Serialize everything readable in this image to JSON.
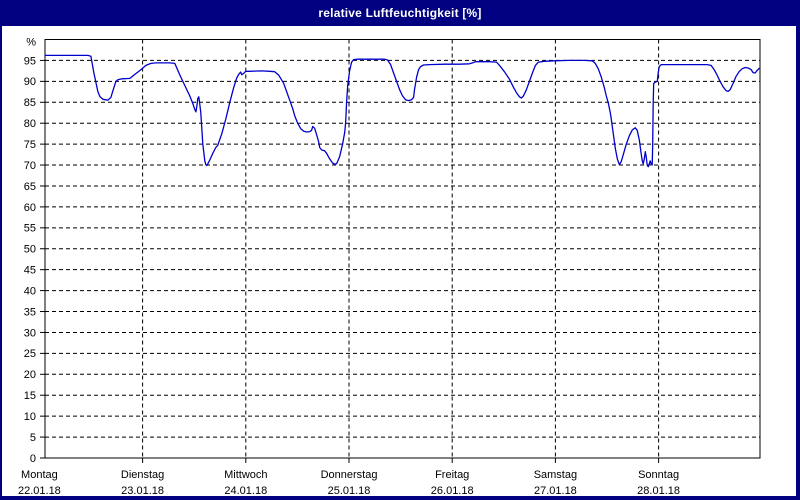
{
  "window": {
    "title": "relative Luftfeuchtigkeit [%]",
    "colors": {
      "title_bar": "#000080",
      "title_text": "#ffffff",
      "frame": "#000080",
      "plot_background": "#ffffff",
      "grid": "#000000",
      "axis_text": "#000000",
      "series_line": "#0000cc"
    }
  },
  "chart_data": {
    "type": "line",
    "title": "relative Luftfeuchtigkeit [%]",
    "grid": "dashed",
    "legend": "none",
    "y_axis": {
      "unit_top_label": "%",
      "min": 0,
      "max": 100,
      "tick_step": 5,
      "tick_labels": [
        "95",
        "90",
        "85",
        "80",
        "75",
        "70",
        "65",
        "60",
        "55",
        "50",
        "45",
        "40",
        "35",
        "30",
        "25",
        "20",
        "15",
        "10",
        "5",
        "0"
      ]
    },
    "x_axis": {
      "days": [
        {
          "name": "Montag",
          "date": "22.01.18"
        },
        {
          "name": "Dienstag",
          "date": "23.01.18"
        },
        {
          "name": "Mittwoch",
          "date": "24.01.18"
        },
        {
          "name": "Donnerstag",
          "date": "25.01.18"
        },
        {
          "name": "Freitag",
          "date": "26.01.18"
        },
        {
          "name": "Samstag",
          "date": "27.01.18"
        },
        {
          "name": "Sonntag",
          "date": "28.01.18"
        }
      ]
    },
    "series": [
      {
        "name": "relative Luftfeuchtigkeit",
        "unit": "%",
        "x_unit": "days since Montag 22.01.18 00:00",
        "points": [
          [
            0.054,
            96.2
          ],
          [
            0.47,
            96.2
          ],
          [
            0.499,
            96.0
          ],
          [
            0.528,
            92.0
          ],
          [
            0.567,
            87.5
          ],
          [
            0.587,
            86.3
          ],
          [
            0.616,
            85.7
          ],
          [
            0.664,
            85.5
          ],
          [
            0.693,
            86.2
          ],
          [
            0.722,
            88.5
          ],
          [
            0.741,
            90.0
          ],
          [
            0.761,
            90.4
          ],
          [
            0.8,
            90.6
          ],
          [
            0.877,
            90.7
          ],
          [
            0.916,
            91.5
          ],
          [
            0.974,
            92.6
          ],
          [
            1.032,
            93.8
          ],
          [
            1.08,
            94.3
          ],
          [
            1.128,
            94.4
          ],
          [
            1.264,
            94.4
          ],
          [
            1.312,
            94.3
          ],
          [
            1.361,
            91.5
          ],
          [
            1.409,
            89.0
          ],
          [
            1.457,
            86.5
          ],
          [
            1.486,
            84.7
          ],
          [
            1.506,
            83.3
          ],
          [
            1.516,
            82.7
          ],
          [
            1.525,
            84.0
          ],
          [
            1.535,
            85.9
          ],
          [
            1.545,
            86.3
          ],
          [
            1.554,
            84.5
          ],
          [
            1.564,
            82.5
          ],
          [
            1.583,
            75.0
          ],
          [
            1.603,
            71.0
          ],
          [
            1.612,
            70.1
          ],
          [
            1.622,
            69.9
          ],
          [
            1.632,
            70.3
          ],
          [
            1.651,
            71.2
          ],
          [
            1.68,
            72.8
          ],
          [
            1.709,
            74.2
          ],
          [
            1.728,
            74.7
          ],
          [
            1.767,
            77.5
          ],
          [
            1.806,
            81.0
          ],
          [
            1.845,
            85.0
          ],
          [
            1.883,
            88.5
          ],
          [
            1.912,
            90.8
          ],
          [
            1.932,
            91.7
          ],
          [
            1.951,
            92.2
          ],
          [
            1.961,
            91.6
          ],
          [
            1.98,
            91.9
          ],
          [
            1.999,
            92.4
          ],
          [
            2.038,
            92.4
          ],
          [
            2.154,
            92.5
          ],
          [
            2.232,
            92.4
          ],
          [
            2.28,
            92.3
          ],
          [
            2.319,
            91.5
          ],
          [
            2.348,
            90.3
          ],
          [
            2.367,
            89.5
          ],
          [
            2.396,
            87.5
          ],
          [
            2.425,
            85.5
          ],
          [
            2.454,
            83.5
          ],
          [
            2.474,
            81.8
          ],
          [
            2.503,
            80.0
          ],
          [
            2.532,
            78.7
          ],
          [
            2.561,
            78.1
          ],
          [
            2.59,
            77.9
          ],
          [
            2.619,
            78.0
          ],
          [
            2.638,
            78.3
          ],
          [
            2.648,
            79.2
          ],
          [
            2.667,
            78.8
          ],
          [
            2.687,
            77.2
          ],
          [
            2.706,
            75.5
          ],
          [
            2.716,
            74.2
          ],
          [
            2.735,
            73.6
          ],
          [
            2.764,
            73.4
          ],
          [
            2.783,
            72.8
          ],
          [
            2.812,
            71.5
          ],
          [
            2.841,
            70.5
          ],
          [
            2.861,
            70.2
          ],
          [
            2.88,
            70.3
          ],
          [
            2.909,
            72.0
          ],
          [
            2.938,
            75.0
          ],
          [
            2.958,
            77.8
          ],
          [
            2.967,
            80.0
          ],
          [
            2.977,
            85.0
          ],
          [
            2.987,
            89.0
          ],
          [
            3.006,
            92.5
          ],
          [
            3.025,
            94.6
          ],
          [
            3.045,
            95.2
          ],
          [
            3.083,
            95.3
          ],
          [
            3.2,
            95.3
          ],
          [
            3.345,
            95.3
          ],
          [
            3.374,
            95.1
          ],
          [
            3.403,
            94.0
          ],
          [
            3.432,
            92.0
          ],
          [
            3.461,
            90.0
          ],
          [
            3.49,
            88.0
          ],
          [
            3.519,
            86.5
          ],
          [
            3.548,
            85.6
          ],
          [
            3.577,
            85.4
          ],
          [
            3.606,
            85.6
          ],
          [
            3.626,
            86.2
          ],
          [
            3.635,
            88.0
          ],
          [
            3.655,
            91.0
          ],
          [
            3.674,
            92.8
          ],
          [
            3.693,
            93.5
          ],
          [
            3.722,
            93.9
          ],
          [
            3.78,
            94.0
          ],
          [
            3.926,
            94.1
          ],
          [
            4.071,
            94.1
          ],
          [
            4.168,
            94.2
          ],
          [
            4.197,
            94.4
          ],
          [
            4.226,
            94.7
          ],
          [
            4.361,
            94.7
          ],
          [
            4.429,
            94.6
          ],
          [
            4.458,
            93.8
          ],
          [
            4.506,
            92.3
          ],
          [
            4.555,
            90.5
          ],
          [
            4.593,
            88.6
          ],
          [
            4.622,
            87.3
          ],
          [
            4.651,
            86.3
          ],
          [
            4.671,
            86.0
          ],
          [
            4.69,
            86.5
          ],
          [
            4.719,
            88.0
          ],
          [
            4.748,
            90.0
          ],
          [
            4.777,
            92.0
          ],
          [
            4.806,
            93.8
          ],
          [
            4.835,
            94.6
          ],
          [
            4.893,
            94.8
          ],
          [
            4.99,
            94.9
          ],
          [
            5.135,
            95.0
          ],
          [
            5.28,
            95.0
          ],
          [
            5.358,
            94.9
          ],
          [
            5.387,
            94.3
          ],
          [
            5.416,
            93.0
          ],
          [
            5.445,
            91.0
          ],
          [
            5.474,
            88.5
          ],
          [
            5.493,
            86.5
          ],
          [
            5.513,
            84.8
          ],
          [
            5.532,
            82.5
          ],
          [
            5.542,
            80.9
          ],
          [
            5.561,
            77.5
          ],
          [
            5.58,
            74.0
          ],
          [
            5.6,
            71.5
          ],
          [
            5.619,
            70.1
          ],
          [
            5.638,
            70.8
          ],
          [
            5.658,
            72.5
          ],
          [
            5.687,
            75.0
          ],
          [
            5.716,
            77.0
          ],
          [
            5.745,
            78.4
          ],
          [
            5.774,
            78.9
          ],
          [
            5.793,
            78.3
          ],
          [
            5.813,
            76.0
          ],
          [
            5.832,
            72.5
          ],
          [
            5.842,
            71.0
          ],
          [
            5.851,
            70.3
          ],
          [
            5.861,
            71.5
          ],
          [
            5.871,
            73.2
          ],
          [
            5.88,
            72.0
          ],
          [
            5.89,
            70.0
          ],
          [
            5.9,
            69.6
          ],
          [
            5.909,
            70.2
          ],
          [
            5.919,
            71.0
          ],
          [
            5.929,
            70.2
          ],
          [
            5.938,
            70.0
          ],
          [
            5.943,
            75.0
          ],
          [
            5.948,
            85.0
          ],
          [
            5.953,
            89.5
          ],
          [
            5.967,
            89.8
          ],
          [
            5.987,
            90.0
          ],
          [
            5.996,
            92.0
          ],
          [
            6.006,
            93.5
          ],
          [
            6.025,
            94.0
          ],
          [
            6.103,
            94.0
          ],
          [
            6.248,
            94.0
          ],
          [
            6.393,
            94.0
          ],
          [
            6.47,
            94.0
          ],
          [
            6.509,
            93.8
          ],
          [
            6.538,
            92.8
          ],
          [
            6.567,
            91.5
          ],
          [
            6.596,
            90.0
          ],
          [
            6.625,
            88.7
          ],
          [
            6.654,
            87.8
          ],
          [
            6.674,
            87.6
          ],
          [
            6.693,
            88.0
          ],
          [
            6.722,
            89.5
          ],
          [
            6.751,
            91.2
          ],
          [
            6.78,
            92.3
          ],
          [
            6.809,
            93.0
          ],
          [
            6.838,
            93.3
          ],
          [
            6.867,
            93.2
          ],
          [
            6.896,
            92.8
          ],
          [
            6.916,
            92.1
          ],
          [
            6.935,
            92.0
          ],
          [
            6.954,
            92.6
          ],
          [
            6.974,
            93.1
          ]
        ]
      }
    ]
  }
}
